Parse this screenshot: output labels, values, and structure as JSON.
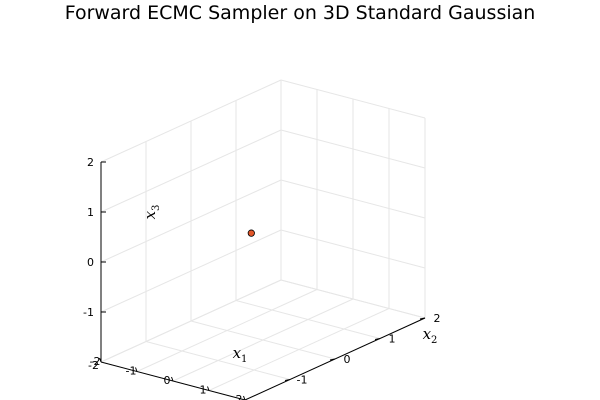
{
  "chart_data": {
    "type": "scatter",
    "projection": "3d",
    "title": "Forward ECMC Sampler on 3D Standard Gaussian",
    "axes": {
      "x1": {
        "label": "x",
        "subscript": "1",
        "ticks": [
          "-2",
          "-1",
          "0",
          "1",
          "2"
        ],
        "range": [
          -2,
          2
        ]
      },
      "x2": {
        "label": "x",
        "subscript": "2",
        "ticks": [
          "-1",
          "0",
          "1",
          "2"
        ],
        "range": [
          -2,
          2
        ]
      },
      "x3": {
        "label": "x",
        "subscript": "3",
        "ticks": [
          "-1",
          "0",
          "1",
          "2"
        ],
        "range": [
          -2,
          2
        ]
      }
    },
    "grid": true,
    "legend": "none",
    "series": [
      {
        "points": [
          {
            "x1": -0.2,
            "x2": -0.1,
            "x3": 0.14
          }
        ]
      }
    ],
    "colors": {
      "point_fill": "#e2572a",
      "point_edge": "#000000",
      "grid": "#e6e6e6",
      "axis": "#000000"
    }
  }
}
